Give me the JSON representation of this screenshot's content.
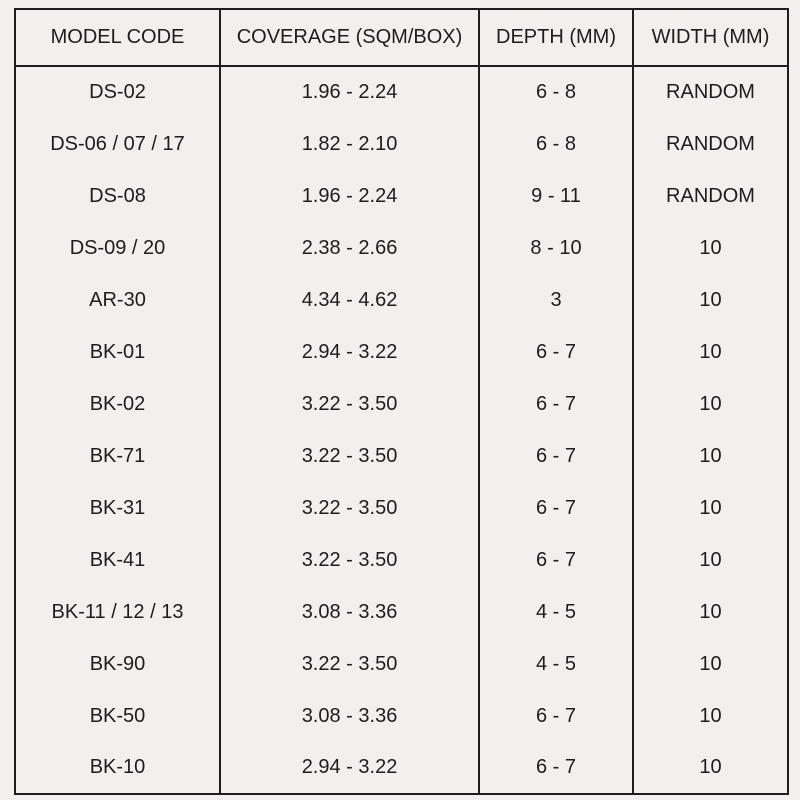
{
  "colors": {
    "background": "#f2f0ec",
    "border": "#1e1e1e",
    "text": "#1d1d1d"
  },
  "table": {
    "headers": [
      "MODEL CODE",
      "COVERAGE (SQM/BOX)",
      "DEPTH (MM)",
      "WIDTH (MM)"
    ],
    "rows": [
      [
        "DS-02",
        "1.96 - 2.24",
        "6 - 8",
        "RANDOM"
      ],
      [
        "DS-06 / 07 / 17",
        "1.82 - 2.10",
        "6 - 8",
        "RANDOM"
      ],
      [
        "DS-08",
        "1.96 - 2.24",
        "9 - 11",
        "RANDOM"
      ],
      [
        "DS-09 / 20",
        "2.38 - 2.66",
        "8 - 10",
        "10"
      ],
      [
        "AR-30",
        "4.34 - 4.62",
        "3",
        "10"
      ],
      [
        "BK-01",
        "2.94 - 3.22",
        "6 - 7",
        "10"
      ],
      [
        "BK-02",
        "3.22 - 3.50",
        "6 - 7",
        "10"
      ],
      [
        "BK-71",
        "3.22 - 3.50",
        "6 - 7",
        "10"
      ],
      [
        "BK-31",
        "3.22 - 3.50",
        "6 - 7",
        "10"
      ],
      [
        "BK-41",
        "3.22 - 3.50",
        "6 - 7",
        "10"
      ],
      [
        "BK-11 / 12 / 13",
        "3.08 - 3.36",
        "4 - 5",
        "10"
      ],
      [
        "BK-90",
        "3.22 - 3.50",
        "4 - 5",
        "10"
      ],
      [
        "BK-50",
        "3.08 - 3.36",
        "6 - 7",
        "10"
      ],
      [
        "BK-10",
        "2.94 - 3.22",
        "6 - 7",
        "10"
      ]
    ]
  }
}
